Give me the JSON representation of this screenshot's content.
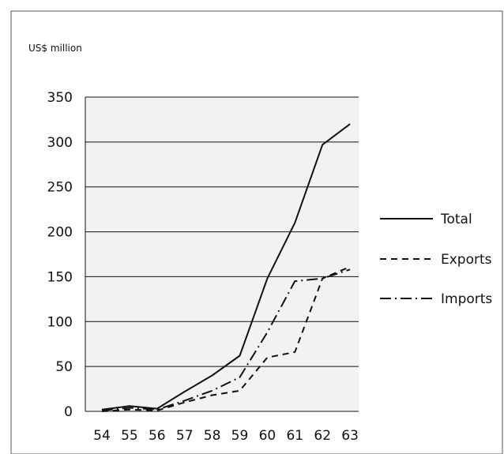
{
  "chart_data": {
    "type": "line",
    "unit_label": "US$ million",
    "categories": [
      "54",
      "55",
      "56",
      "57",
      "58",
      "59",
      "60",
      "61",
      "62",
      "63"
    ],
    "ylim": [
      0,
      350
    ],
    "yticks": [
      0,
      50,
      100,
      150,
      200,
      250,
      300,
      350
    ],
    "grid": true,
    "legend_position": "right",
    "series": [
      {
        "name": "Total",
        "values": [
          2,
          6,
          3,
          22,
          40,
          62,
          148,
          210,
          297,
          320
        ],
        "dash": "none",
        "color": "#111111"
      },
      {
        "name": "Exports",
        "values": [
          0,
          2,
          1,
          10,
          18,
          23,
          60,
          66,
          148,
          161
        ],
        "dash": "8,6",
        "color": "#111111"
      },
      {
        "name": "Imports",
        "values": [
          1,
          4,
          2,
          12,
          23,
          38,
          88,
          145,
          148,
          158
        ],
        "dash": "14,5,2,5",
        "color": "#111111"
      }
    ]
  }
}
